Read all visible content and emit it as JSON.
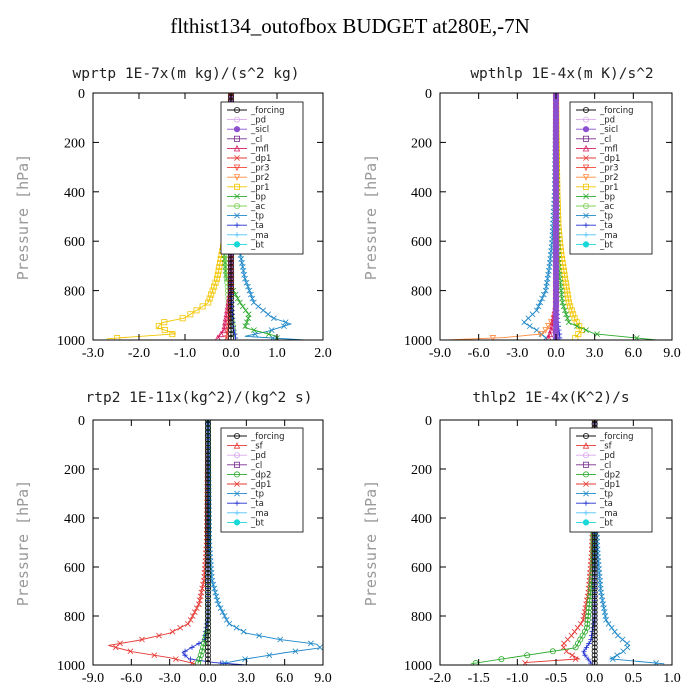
{
  "figure": {
    "title": "flthist134_outofbox  BUDGET at280E,-7N"
  },
  "colors": {
    "_forcing": "#111111",
    "_pd": "#d9a8ee",
    "_sicl": "#8b4fd0",
    "_cl": "#7a2d8f",
    "_mfl": "#d81b60",
    "_dp1": "#e53935",
    "_pr3": "#f44336",
    "_pr2": "#ff8a3d",
    "_pr1": "#f2c500",
    "_bp": "#2eaa2e",
    "_ac": "#7fd35a",
    "_tp": "#1e88c8",
    "_ta": "#1f2fd0",
    "_ma": "#4fc3f7",
    "_bt": "#18d8d8",
    "_sf": "#e53935",
    "_dp2": "#2eaa2e"
  },
  "chart_data": [
    {
      "type": "line",
      "title": "wprtp   1E-7x(m kg)/(s^2 kg)",
      "ylabel": "Pressure [hPa]",
      "xlim": [
        -3.0,
        2.0
      ],
      "ylim": [
        1000,
        0
      ],
      "xticks": [
        "-3.0",
        "-2.0",
        "-1.0",
        "0.0",
        "1.0",
        "2.0"
      ],
      "yticks": [
        "0",
        "200",
        "400",
        "600",
        "800",
        "1000"
      ],
      "legend": [
        "_forcing",
        "_pd",
        "_sicl",
        "_cl",
        "_mfl",
        "_dp1",
        "_pr3",
        "_pr2",
        "_pr1",
        "_bp",
        "_ac",
        "_tp",
        "_ta",
        "_ma",
        "_bt"
      ],
      "legend_placement": "top-right",
      "series": [
        {
          "name": "_pr1",
          "points": [
            [
              0,
              0
            ],
            [
              -0.02,
              400
            ],
            [
              -0.05,
              500
            ],
            [
              -0.1,
              550
            ],
            [
              -0.2,
              650
            ],
            [
              -0.3,
              750
            ],
            [
              -0.5,
              850
            ],
            [
              -1.0,
              910
            ],
            [
              -1.5,
              930
            ],
            [
              -1.6,
              950
            ],
            [
              -1.2,
              975
            ],
            [
              -2.7,
              995
            ]
          ]
        },
        {
          "name": "_tp",
          "points": [
            [
              0,
              0
            ],
            [
              0.02,
              400
            ],
            [
              0.05,
              500
            ],
            [
              0.1,
              560
            ],
            [
              0.2,
              650
            ],
            [
              0.3,
              750
            ],
            [
              0.5,
              850
            ],
            [
              0.9,
              910
            ],
            [
              1.3,
              935
            ],
            [
              0.8,
              965
            ],
            [
              0.3,
              985
            ],
            [
              1.6,
              1000
            ]
          ]
        },
        {
          "name": "_bp",
          "points": [
            [
              0,
              0
            ],
            [
              -0.02,
              450
            ],
            [
              -0.08,
              550
            ],
            [
              -0.15,
              650
            ],
            [
              -0.1,
              750
            ],
            [
              0.2,
              850
            ],
            [
              0.4,
              900
            ],
            [
              0.3,
              950
            ],
            [
              1.0,
              985
            ]
          ]
        },
        {
          "name": "_ac",
          "points": [
            [
              0,
              0
            ],
            [
              -0.01,
              450
            ],
            [
              -0.08,
              560
            ],
            [
              -0.1,
              700
            ],
            [
              -0.05,
              850
            ],
            [
              0.05,
              950
            ]
          ]
        },
        {
          "name": "_mfl",
          "points": [
            [
              0,
              0
            ],
            [
              -0.01,
              800
            ],
            [
              -0.15,
              960
            ],
            [
              -0.3,
              995
            ]
          ]
        },
        {
          "name": "_dp1",
          "points": [
            [
              0,
              0
            ],
            [
              0.01,
              800
            ],
            [
              -0.05,
              940
            ],
            [
              -0.1,
              995
            ]
          ]
        },
        {
          "name": "_ta",
          "points": [
            [
              0,
              0
            ],
            [
              0,
              800
            ],
            [
              0.05,
              950
            ],
            [
              0.1,
              990
            ]
          ]
        },
        {
          "name": "_forcing",
          "points": [
            [
              0,
              0
            ],
            [
              0,
              1000
            ]
          ]
        }
      ]
    },
    {
      "type": "line",
      "title": "wpthlp   1E-4x(m K)/s^2",
      "ylabel": "Pressure [hPa]",
      "xlim": [
        -9.0,
        9.0
      ],
      "ylim": [
        1000,
        0
      ],
      "xticks": [
        "-9.0",
        "-6.0",
        "-3.0",
        "0.0",
        "3.0",
        "6.0",
        "9.0"
      ],
      "yticks": [
        "0",
        "200",
        "400",
        "600",
        "800",
        "1000"
      ],
      "legend": [
        "_forcing",
        "_pd",
        "_sicl",
        "_cl",
        "_mfl",
        "_dp1",
        "_pr3",
        "_pr2",
        "_pr1",
        "_bp",
        "_ac",
        "_tp",
        "_ta",
        "_ma",
        "_bt"
      ],
      "legend_placement": "top-right",
      "series": [
        {
          "name": "_pr1",
          "points": [
            [
              0,
              0
            ],
            [
              0.1,
              400
            ],
            [
              0.2,
              550
            ],
            [
              0.4,
              650
            ],
            [
              0.7,
              750
            ],
            [
              1.0,
              850
            ],
            [
              1.5,
              920
            ],
            [
              2.0,
              960
            ],
            [
              1.5,
              990
            ]
          ]
        },
        {
          "name": "_tp",
          "points": [
            [
              0,
              0
            ],
            [
              -0.1,
              400
            ],
            [
              -0.3,
              600
            ],
            [
              -0.5,
              700
            ],
            [
              -0.8,
              800
            ],
            [
              -1.5,
              880
            ],
            [
              -2.5,
              930
            ],
            [
              -1.5,
              960
            ],
            [
              -0.8,
              990
            ]
          ]
        },
        {
          "name": "_bp",
          "points": [
            [
              0,
              0
            ],
            [
              0.1,
              500
            ],
            [
              0.2,
              700
            ],
            [
              0.5,
              850
            ],
            [
              1.0,
              930
            ],
            [
              3.0,
              975
            ],
            [
              7.8,
              1000
            ]
          ]
        },
        {
          "name": "_pr2",
          "points": [
            [
              0,
              0
            ],
            [
              0,
              900
            ],
            [
              -1.0,
              975
            ],
            [
              -4.0,
              990
            ],
            [
              -8.5,
              1000
            ]
          ]
        },
        {
          "name": "_mfl",
          "points": [
            [
              0,
              0
            ],
            [
              0,
              850
            ],
            [
              -0.3,
              950
            ],
            [
              -0.6,
              995
            ]
          ]
        },
        {
          "name": "_ta",
          "points": [
            [
              0,
              0
            ],
            [
              0,
              850
            ],
            [
              0.2,
              950
            ],
            [
              0.3,
              990
            ]
          ]
        },
        {
          "name": "_sicl",
          "points": [
            [
              0,
              0
            ],
            [
              0,
              1000
            ]
          ]
        }
      ]
    },
    {
      "type": "line",
      "title": "rtp2   1E-11x(kg^2)/(kg^2 s)",
      "ylabel": "Pressure [hPa]",
      "xlim": [
        -9.0,
        9.0
      ],
      "ylim": [
        1000,
        0
      ],
      "xticks": [
        "-9.0",
        "-6.0",
        "-3.0",
        "0.0",
        "3.0",
        "6.0",
        "9.0"
      ],
      "yticks": [
        "0",
        "200",
        "400",
        "600",
        "800",
        "1000"
      ],
      "legend": [
        "_forcing",
        "_sf",
        "_pd",
        "_cl",
        "_dp2",
        "_dp1",
        "_tp",
        "_ta",
        "_ma",
        "_bt"
      ],
      "legend_placement": "top-right",
      "series": [
        {
          "name": "_dp1",
          "points": [
            [
              0,
              0
            ],
            [
              -0.1,
              500
            ],
            [
              -0.3,
              650
            ],
            [
              -0.7,
              750
            ],
            [
              -1.5,
              830
            ],
            [
              -3.0,
              870
            ],
            [
              -5.5,
              900
            ],
            [
              -7.8,
              920
            ],
            [
              -6.0,
              945
            ],
            [
              -3.0,
              970
            ],
            [
              -1.0,
              995
            ]
          ]
        },
        {
          "name": "_tp",
          "points": [
            [
              0,
              0
            ],
            [
              0.1,
              500
            ],
            [
              0.3,
              650
            ],
            [
              0.8,
              750
            ],
            [
              1.6,
              830
            ],
            [
              3.0,
              870
            ],
            [
              5.5,
              895
            ],
            [
              8.5,
              915
            ],
            [
              8.8,
              930
            ],
            [
              6.0,
              950
            ],
            [
              3.0,
              975
            ],
            [
              1.0,
              995
            ]
          ]
        },
        {
          "name": "_ta",
          "points": [
            [
              0,
              0
            ],
            [
              0,
              800
            ],
            [
              -0.3,
              900
            ],
            [
              -2.0,
              950
            ],
            [
              -1.5,
              975
            ],
            [
              0.5,
              990
            ],
            [
              3.0,
              1000
            ]
          ]
        },
        {
          "name": "_dp2",
          "points": [
            [
              0,
              0
            ],
            [
              0,
              850
            ],
            [
              -0.5,
              950
            ],
            [
              -0.8,
              995
            ]
          ]
        },
        {
          "name": "_forcing",
          "points": [
            [
              0,
              0
            ],
            [
              0,
              1000
            ]
          ]
        }
      ]
    },
    {
      "type": "line",
      "title": "thlp2   1E-4x(K^2)/s",
      "ylabel": "Pressure [hPa]",
      "xlim": [
        -2.0,
        1.0
      ],
      "ylim": [
        1000,
        0
      ],
      "xticks": [
        "-2.0",
        "-1.5",
        "-1.0",
        "-0.5",
        "0.0",
        "0.5",
        "1.0"
      ],
      "yticks": [
        "0",
        "200",
        "400",
        "600",
        "800",
        "1000"
      ],
      "legend": [
        "_forcing",
        "_sf",
        "_pd",
        "_cl",
        "_dp2",
        "_dp1",
        "_tp",
        "_ta",
        "_ma",
        "_bt"
      ],
      "legend_placement": "top-right",
      "series": [
        {
          "name": "_tp",
          "points": [
            [
              0,
              0
            ],
            [
              0.02,
              400
            ],
            [
              0.04,
              550
            ],
            [
              0.08,
              700
            ],
            [
              0.15,
              820
            ],
            [
              0.3,
              880
            ],
            [
              0.45,
              920
            ],
            [
              0.35,
              950
            ],
            [
              0.2,
              975
            ],
            [
              0.9,
              995
            ]
          ]
        },
        {
          "name": "_dp1",
          "points": [
            [
              0,
              0
            ],
            [
              -0.02,
              400
            ],
            [
              -0.04,
              550
            ],
            [
              -0.08,
              700
            ],
            [
              -0.15,
              820
            ],
            [
              -0.3,
              880
            ],
            [
              -0.42,
              920
            ],
            [
              -0.35,
              950
            ],
            [
              -0.2,
              975
            ],
            [
              -0.9,
              990
            ]
          ]
        },
        {
          "name": "_dp2",
          "points": [
            [
              0,
              0
            ],
            [
              -0.02,
              600
            ],
            [
              -0.1,
              850
            ],
            [
              -0.25,
              930
            ],
            [
              -1.6,
              995
            ]
          ]
        },
        {
          "name": "_ta",
          "points": [
            [
              0,
              0
            ],
            [
              0,
              800
            ],
            [
              -0.05,
              900
            ],
            [
              -0.15,
              950
            ],
            [
              -0.05,
              990
            ]
          ]
        },
        {
          "name": "_forcing",
          "points": [
            [
              0,
              0
            ],
            [
              0,
              1000
            ]
          ]
        }
      ]
    }
  ]
}
